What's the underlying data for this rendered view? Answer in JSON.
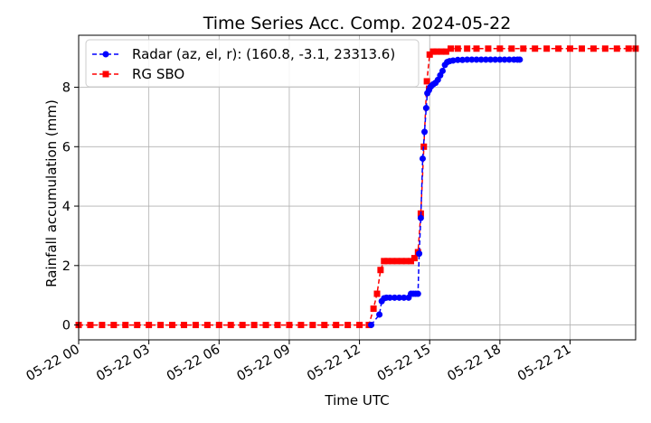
{
  "chart_data": {
    "type": "line",
    "title": "Time Series Acc. Comp. 2024-05-22",
    "xlabel": "Time UTC",
    "ylabel": "Rainfall accumulation (mm)",
    "xlim_hours": [
      0,
      23.8
    ],
    "ylim": [
      -0.5,
      9.75
    ],
    "x_ticks": [
      {
        "hour": 0,
        "label": "05-22 00"
      },
      {
        "hour": 3,
        "label": "05-22 03"
      },
      {
        "hour": 6,
        "label": "05-22 06"
      },
      {
        "hour": 9,
        "label": "05-22 09"
      },
      {
        "hour": 12,
        "label": "05-22 12"
      },
      {
        "hour": 15,
        "label": "05-22 15"
      },
      {
        "hour": 18,
        "label": "05-22 18"
      },
      {
        "hour": 21,
        "label": "05-22 21"
      }
    ],
    "y_ticks": [
      0,
      2,
      4,
      6,
      8
    ],
    "grid": true,
    "legend_position": "top-left",
    "series": [
      {
        "name": "Radar (az, el, r): (160.8, -3.1, 23313.6)",
        "color": "#0000ff",
        "marker": "circle",
        "linestyle": "dashed",
        "x_hours": [
          12.5,
          12.85,
          12.95,
          13.05,
          13.15,
          13.3,
          13.5,
          13.7,
          13.9,
          14.1,
          14.2,
          14.3,
          14.4,
          14.5,
          14.55,
          14.62,
          14.7,
          14.78,
          14.85,
          14.9,
          14.97,
          15.02,
          15.08,
          15.15,
          15.25,
          15.35,
          15.45,
          15.55,
          15.65,
          15.75,
          15.85,
          16.0,
          16.2,
          16.4,
          16.6,
          16.8,
          17.0,
          17.2,
          17.4,
          17.6,
          17.8,
          18.0,
          18.2,
          18.4,
          18.6,
          18.75,
          18.85
        ],
        "y": [
          0.0,
          0.35,
          0.8,
          0.9,
          0.92,
          0.92,
          0.92,
          0.92,
          0.92,
          0.92,
          1.05,
          1.05,
          1.05,
          1.05,
          2.4,
          3.6,
          5.6,
          6.5,
          7.3,
          7.8,
          7.9,
          8.0,
          8.05,
          8.1,
          8.15,
          8.25,
          8.4,
          8.55,
          8.75,
          8.85,
          8.88,
          8.9,
          8.92,
          8.92,
          8.93,
          8.93,
          8.93,
          8.93,
          8.93,
          8.93,
          8.93,
          8.93,
          8.93,
          8.93,
          8.93,
          8.93,
          8.93
        ]
      },
      {
        "name": "RG SBO",
        "color": "#ff0000",
        "marker": "square",
        "linestyle": "dashed",
        "x_hours": [
          0,
          0.5,
          1,
          1.5,
          2,
          2.5,
          3,
          3.5,
          4,
          4.5,
          5,
          5.5,
          6,
          6.5,
          7,
          7.5,
          8,
          8.5,
          9,
          9.5,
          10,
          10.5,
          11,
          11.5,
          12,
          12.4,
          12.6,
          12.75,
          12.9,
          13.05,
          13.2,
          13.4,
          13.6,
          13.8,
          14.0,
          14.2,
          14.35,
          14.5,
          14.62,
          14.75,
          14.88,
          15.0,
          15.15,
          15.3,
          15.5,
          15.7,
          15.9,
          16.2,
          16.6,
          17.0,
          17.5,
          18.0,
          18.5,
          19.0,
          19.5,
          20.0,
          20.5,
          21.0,
          21.5,
          22.0,
          22.5,
          23.0,
          23.5,
          23.8
        ],
        "y": [
          0,
          0,
          0,
          0,
          0,
          0,
          0,
          0,
          0,
          0,
          0,
          0,
          0,
          0,
          0,
          0,
          0,
          0,
          0,
          0,
          0,
          0,
          0,
          0,
          0,
          0.0,
          0.55,
          1.05,
          1.85,
          2.15,
          2.15,
          2.15,
          2.15,
          2.15,
          2.15,
          2.15,
          2.25,
          2.45,
          3.75,
          6.0,
          8.2,
          9.1,
          9.2,
          9.2,
          9.2,
          9.2,
          9.3,
          9.3,
          9.3,
          9.3,
          9.3,
          9.3,
          9.3,
          9.3,
          9.3,
          9.3,
          9.3,
          9.3,
          9.3,
          9.3,
          9.3,
          9.3,
          9.3,
          9.3
        ]
      }
    ]
  }
}
